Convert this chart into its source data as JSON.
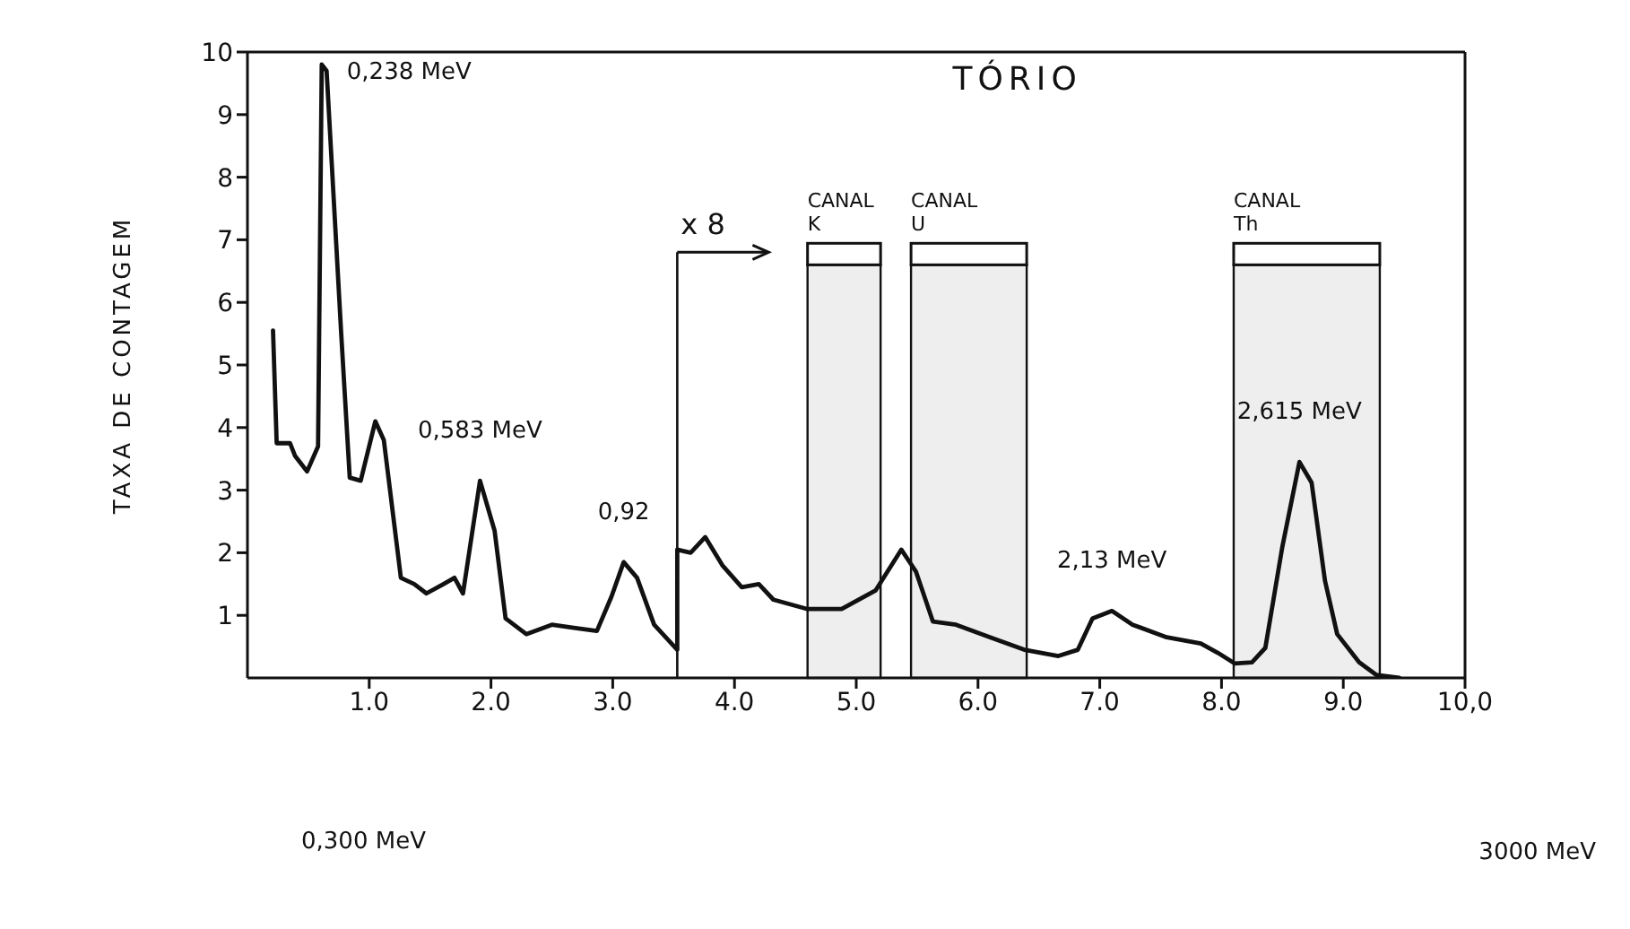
{
  "chart_data": {
    "type": "line",
    "title": "TÓRIO",
    "ylabel": "TAXA DE CONTAGEM",
    "series": [
      {
        "color": "#111111",
        "x": [
          0.21,
          0.24,
          0.35,
          0.39,
          0.49,
          0.58,
          0.61,
          0.65,
          0.77,
          0.84,
          0.93,
          1.05,
          1.12,
          1.26,
          1.37,
          1.47,
          1.61,
          1.7,
          1.77,
          1.91,
          2.03,
          2.12,
          2.29,
          2.5,
          2.68,
          2.87,
          2.99,
          3.09,
          3.2,
          3.34,
          3.53,
          3.53,
          3.64,
          3.76,
          3.9,
          4.06,
          4.2,
          4.32,
          4.6,
          4.88,
          5.16,
          5.37,
          5.49,
          5.63,
          5.82,
          6.1,
          6.38,
          6.66,
          6.82,
          6.94,
          7.1,
          7.27,
          7.55,
          7.83,
          7.97,
          8.11,
          8.25,
          8.36,
          8.5,
          8.64,
          8.74,
          8.85,
          8.95,
          9.13,
          9.27,
          9.46
        ],
        "values": [
          5.55,
          3.75,
          3.75,
          3.55,
          3.3,
          3.7,
          9.8,
          9.7,
          5.5,
          3.2,
          3.15,
          4.1,
          3.8,
          1.6,
          1.5,
          1.35,
          1.5,
          1.6,
          1.35,
          3.15,
          2.35,
          0.95,
          0.7,
          0.85,
          0.8,
          0.75,
          1.3,
          1.85,
          1.6,
          0.85,
          0.45,
          2.05,
          2.0,
          2.25,
          1.8,
          1.45,
          1.5,
          1.25,
          1.1,
          1.1,
          1.4,
          2.05,
          1.7,
          0.9,
          0.85,
          0.65,
          0.45,
          0.35,
          0.45,
          0.95,
          1.07,
          0.85,
          0.65,
          0.55,
          0.4,
          0.23,
          0.25,
          0.48,
          2.1,
          3.45,
          3.12,
          1.55,
          0.7,
          0.25,
          0.05,
          0.0
        ]
      }
    ],
    "xlim": [
      0,
      10
    ],
    "ylim": [
      0,
      10
    ],
    "xticks": [
      {
        "value": 1,
        "label": "1.0"
      },
      {
        "value": 2,
        "label": "2.0"
      },
      {
        "value": 3,
        "label": "3.0"
      },
      {
        "value": 4,
        "label": "4.0"
      },
      {
        "value": 5,
        "label": "5.0"
      },
      {
        "value": 6,
        "label": "6.0"
      },
      {
        "value": 7,
        "label": "7.0"
      },
      {
        "value": 8,
        "label": "8.0"
      },
      {
        "value": 9,
        "label": "9.0"
      },
      {
        "value": 10,
        "label": "10,0"
      }
    ],
    "yticks": [
      1,
      2,
      3,
      4,
      5,
      6,
      7,
      8,
      9,
      10
    ],
    "ref_lines": [
      {
        "axis": "x",
        "value": 3.53,
        "label": "x 8"
      }
    ],
    "bands": [
      {
        "axis": "x",
        "from": 4.6,
        "to": 5.2,
        "label": "CANAL K",
        "color": "#111111"
      },
      {
        "axis": "x",
        "from": 5.45,
        "to": 6.4,
        "label": "CANAL U",
        "color": "#111111"
      },
      {
        "axis": "x",
        "from": 8.1,
        "to": 9.3,
        "label": "CANAL Th",
        "color": "#111111"
      }
    ],
    "annotations": [
      {
        "text": "0,238 MeV",
        "x": 0.61,
        "y": 9.8
      },
      {
        "text": "0,583 MeV",
        "x": 1.91,
        "y": 3.15
      },
      {
        "text": "0,92",
        "x": 3.09,
        "y": 1.85
      },
      {
        "text": "2,13 MeV",
        "x": 7.1,
        "y": 1.07
      },
      {
        "text": "2,615 MeV",
        "x": 8.64,
        "y": 3.45
      },
      "0,300 MeV",
      "3000 MeV"
    ],
    "marker": "none",
    "line_style": "solid"
  }
}
